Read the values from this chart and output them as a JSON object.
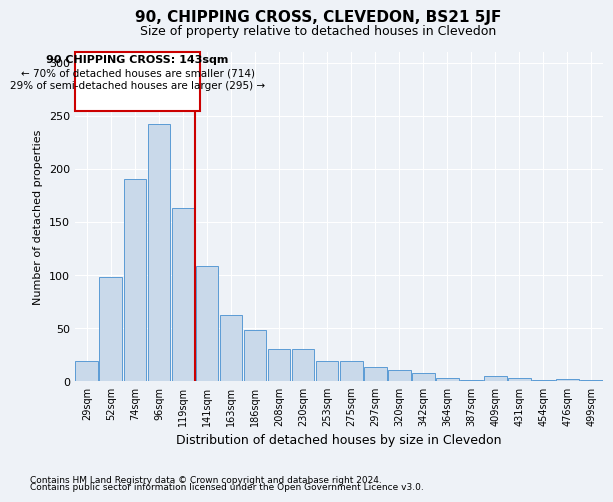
{
  "title": "90, CHIPPING CROSS, CLEVEDON, BS21 5JF",
  "subtitle": "Size of property relative to detached houses in Clevedon",
  "xlabel": "Distribution of detached houses by size in Clevedon",
  "ylabel": "Number of detached properties",
  "bar_values": [
    19,
    98,
    190,
    242,
    163,
    109,
    62,
    48,
    30,
    30,
    19,
    19,
    13,
    11,
    8,
    3,
    1,
    5,
    3,
    1,
    2,
    1
  ],
  "bar_labels": [
    "29sqm",
    "52sqm",
    "74sqm",
    "96sqm",
    "119sqm",
    "141sqm",
    "163sqm",
    "186sqm",
    "208sqm",
    "230sqm",
    "253sqm",
    "275sqm",
    "297sqm",
    "320sqm",
    "342sqm",
    "364sqm",
    "387sqm",
    "409sqm",
    "431sqm",
    "454sqm",
    "476sqm",
    "499sqm"
  ],
  "bar_color": "#c9d9ea",
  "bar_edge_color": "#5b9bd5",
  "vline_color": "#cc0000",
  "annotation_title": "90 CHIPPING CROSS: 143sqm",
  "annotation_line1": "← 70% of detached houses are smaller (714)",
  "annotation_line2": "29% of semi-detached houses are larger (295) →",
  "annotation_box_color": "#cc0000",
  "ylim": [
    0,
    310
  ],
  "yticks": [
    0,
    50,
    100,
    150,
    200,
    250,
    300
  ],
  "footer1": "Contains HM Land Registry data © Crown copyright and database right 2024.",
  "footer2": "Contains public sector information licensed under the Open Government Licence v3.0.",
  "bg_color": "#eef2f7",
  "plot_bg_color": "#eef2f7"
}
